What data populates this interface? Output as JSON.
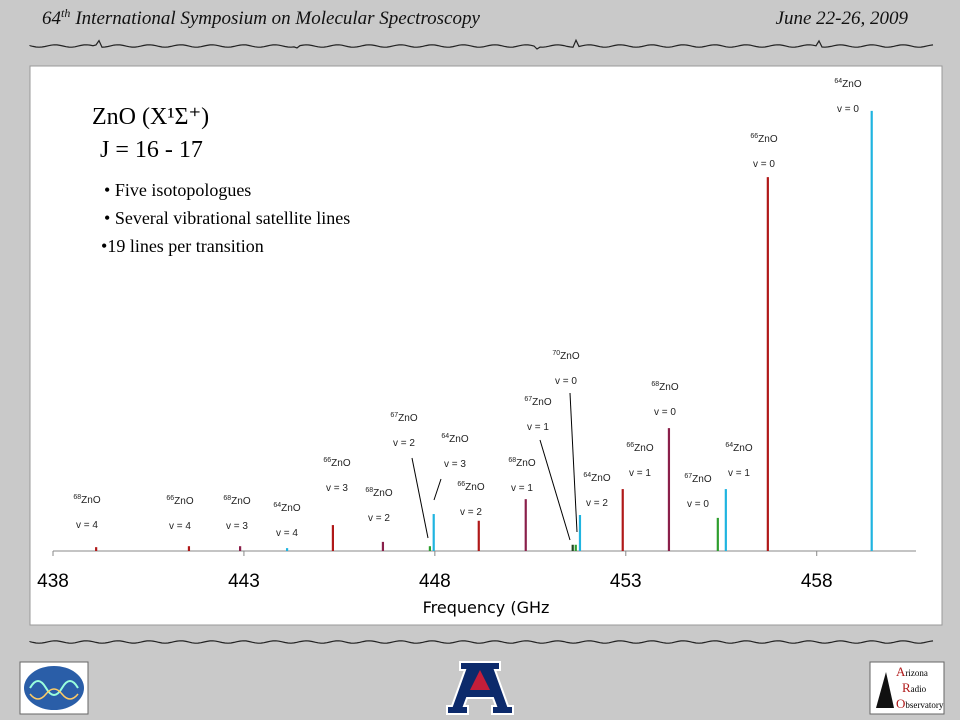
{
  "header": {
    "number": "64",
    "ordinal": "th",
    "text": "International Symposium on Molecular Spectroscopy",
    "date": "June 22-26, 2009"
  },
  "chart_data": {
    "type": "stick",
    "title": "ZnO (X¹Σ⁺)",
    "subtitle": "J = 16 - 17",
    "bullets": [
      "Five isotopologues",
      "Several vibrational satellite lines",
      "19 lines per transition"
    ],
    "x_label": "Frequency (GHz",
    "xlim": [
      438,
      460.6
    ],
    "xticks": [
      438,
      443,
      448,
      453,
      458
    ],
    "ylim": [
      0,
      100
    ],
    "x": [
      439.13,
      441.56,
      442.9,
      444.13,
      445.33,
      446.64,
      447.87,
      447.97,
      449.15,
      450.38,
      451.61,
      451.69,
      451.8,
      452.92,
      454.13,
      455.41,
      455.62,
      456.72,
      459.44
    ],
    "values": [
      0.8,
      1.0,
      1.0,
      0.6,
      5.4,
      1.9,
      1.0,
      7.7,
      6.3,
      10.8,
      1.3,
      1.3,
      7.5,
      12.9,
      25.6,
      6.9,
      12.9,
      77.9,
      91.7
    ],
    "isotopes": [
      "68",
      "66",
      "68",
      "64",
      "66",
      "68",
      "67",
      "64",
      "66",
      "68",
      "70",
      "67",
      "64",
      "66",
      "68",
      "67",
      "64",
      "66",
      "64"
    ],
    "species": [
      "ZnO",
      "ZnO",
      "ZnO",
      "ZnO",
      "ZnO",
      "ZnO",
      "ZnO",
      "ZnO",
      "ZnO",
      "ZnO",
      "ZnO",
      "ZnO",
      "ZnO",
      "ZnO",
      "ZnO",
      "ZnO",
      "ZnO",
      "ZnO",
      "ZnO"
    ],
    "states": [
      "v = 4",
      "v = 4",
      "v = 3",
      "v = 4",
      "v = 3",
      "v = 2",
      "v = 2",
      "v = 3",
      "v = 2",
      "v = 1",
      "v = 0",
      "v = 1",
      "v = 2",
      "v = 1",
      "v = 0",
      "v = 0",
      "v = 1",
      "v = 0",
      "v = 0"
    ],
    "colors": [
      "#b01818",
      "#b01818",
      "#8a1f4a",
      "#1fb4e0",
      "#b01818",
      "#8a1f4a",
      "#2e9e2e",
      "#1fb4e0",
      "#b01818",
      "#8a1f4a",
      "#1f4a1f",
      "#2e9e2e",
      "#1fb4e0",
      "#b01818",
      "#8a1f4a",
      "#2e9e2e",
      "#1fb4e0",
      "#b01818",
      "#1fb4e0"
    ]
  },
  "logos": {
    "observatory": [
      "A",
      "rizona",
      "R",
      "adio",
      "O",
      "bservatory"
    ]
  }
}
